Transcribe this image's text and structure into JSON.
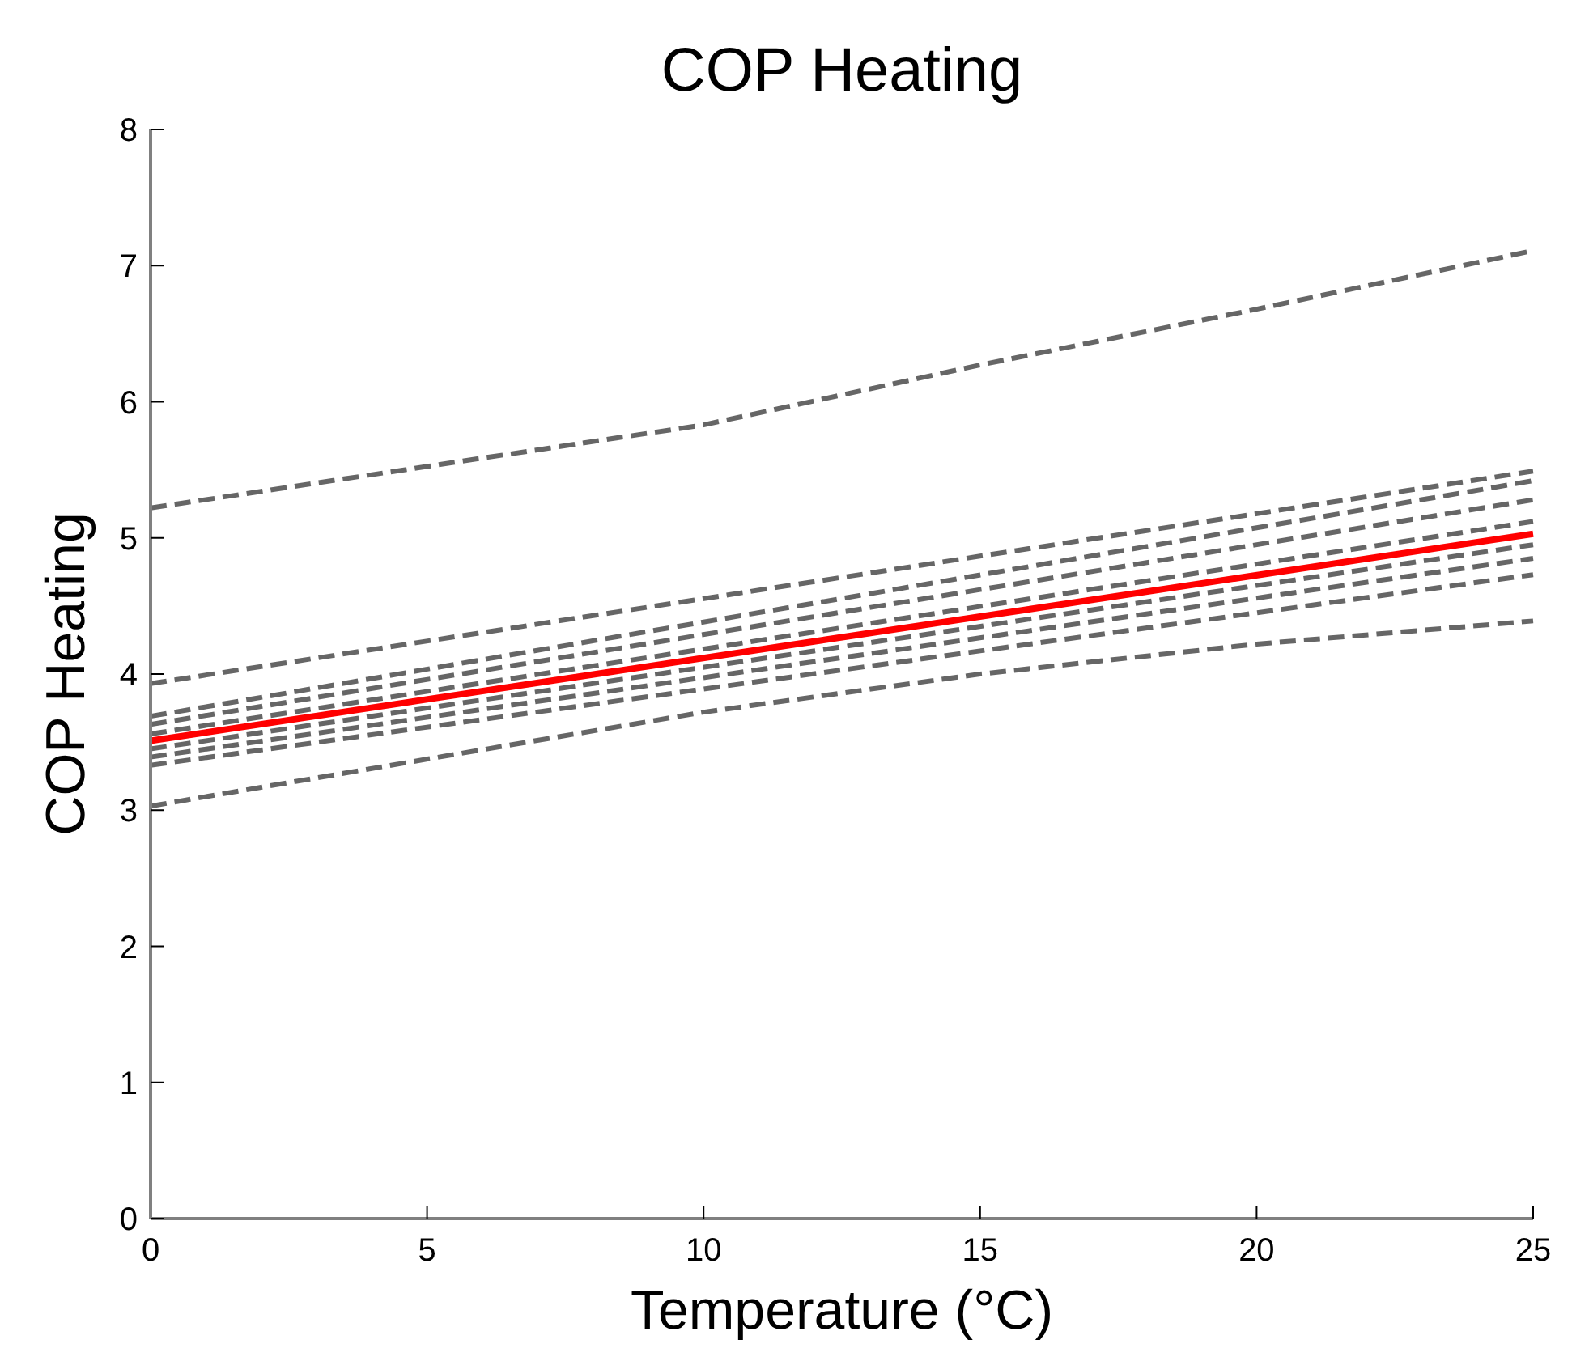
{
  "chart_data": {
    "type": "line",
    "title": "COP Heating",
    "xlabel": "Temperature (°C)",
    "ylabel": "COP Heating",
    "xlim": [
      0,
      25
    ],
    "xticks": [
      0,
      5,
      10,
      15,
      20,
      25
    ],
    "ylim": [
      0,
      8
    ],
    "yticks": [
      0,
      1,
      2,
      3,
      4,
      5,
      6,
      7,
      8
    ],
    "grid": false,
    "marker": "none",
    "series": [
      {
        "color": "#666666",
        "line_style": "dashed",
        "x": [
          0,
          10,
          15,
          20,
          25
        ],
        "values": [
          5.22,
          5.83,
          6.27,
          6.68,
          7.11
        ]
      },
      {
        "color": "#666666",
        "line_style": "dashed",
        "x": [
          0,
          25
        ],
        "values": [
          3.93,
          5.49
        ]
      },
      {
        "color": "#666666",
        "line_style": "dashed",
        "x": [
          0,
          25
        ],
        "values": [
          3.69,
          5.42
        ]
      },
      {
        "color": "#666666",
        "line_style": "dashed",
        "x": [
          0,
          25
        ],
        "values": [
          3.63,
          5.28
        ]
      },
      {
        "color": "#666666",
        "line_style": "dashed",
        "x": [
          0,
          25
        ],
        "values": [
          3.56,
          5.12
        ]
      },
      {
        "color": "#666666",
        "line_style": "dashed",
        "x": [
          0,
          25
        ],
        "values": [
          3.45,
          4.95
        ]
      },
      {
        "color": "#666666",
        "line_style": "dashed",
        "x": [
          0,
          25
        ],
        "values": [
          3.39,
          4.85
        ]
      },
      {
        "color": "#666666",
        "line_style": "dashed",
        "x": [
          0,
          25
        ],
        "values": [
          3.33,
          4.73
        ]
      },
      {
        "color": "#666666",
        "line_style": "dashed",
        "x": [
          0,
          10,
          15,
          20,
          25
        ],
        "values": [
          3.03,
          3.72,
          4.0,
          4.22,
          4.39
        ]
      },
      {
        "color": "#ff0000",
        "line_style": "solid",
        "x": [
          0,
          25
        ],
        "values": [
          3.51,
          5.03
        ]
      }
    ]
  }
}
